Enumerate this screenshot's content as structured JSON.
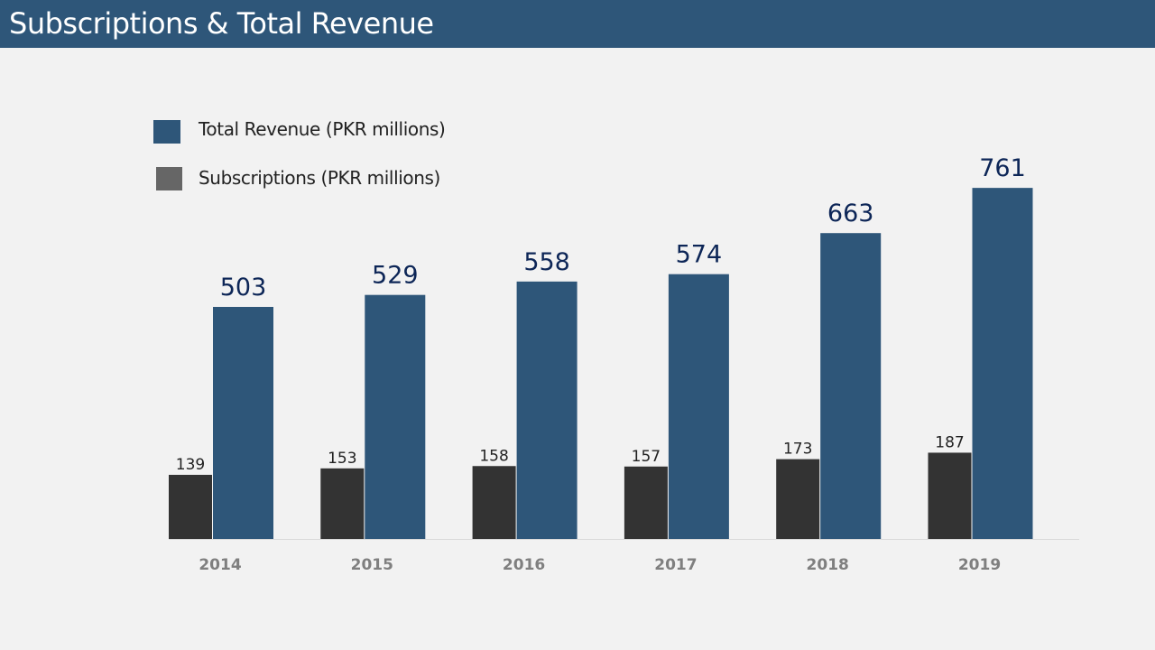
{
  "title": "Subscriptions & Total Revenue",
  "colors": {
    "header": "#2e5679",
    "background": "#f2f2f2",
    "revenue_bar": "#2e5679",
    "subscriptions_bar": "#333333",
    "subscriptions_legend_swatch": "#666666",
    "revenue_label": "#0d2657",
    "subscriptions_label": "#222222",
    "tick_label": "#7f7f7f",
    "axis_line": "#d9d9d9"
  },
  "legend": [
    {
      "label": "Total Revenue (PKR millions)",
      "color": "#2e5679"
    },
    {
      "label": "Subscriptions (PKR millions)",
      "color": "#666666"
    }
  ],
  "chart_data": {
    "type": "bar",
    "categories": [
      "2014",
      "2015",
      "2016",
      "2017",
      "2018",
      "2019"
    ],
    "series": [
      {
        "name": "Subscriptions (PKR millions)",
        "values": [
          139,
          153,
          158,
          157,
          173,
          187
        ],
        "color": "#333333"
      },
      {
        "name": "Total Revenue (PKR millions)",
        "values": [
          503,
          529,
          558,
          574,
          663,
          761
        ],
        "color": "#2e5679"
      }
    ],
    "ylim": [
      0,
      800
    ],
    "grid": false,
    "legend_position": "top-left",
    "data_labels": true
  }
}
